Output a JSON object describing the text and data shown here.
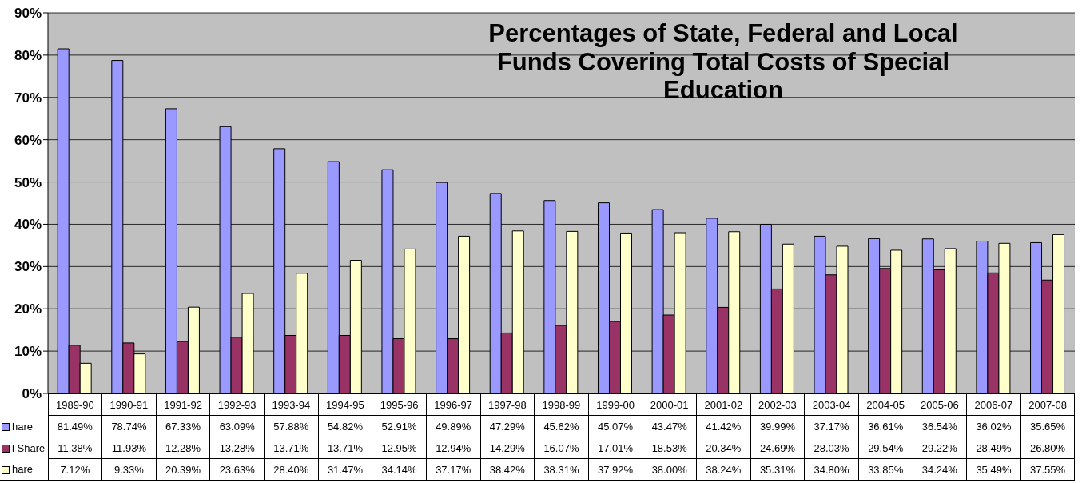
{
  "chart_data": {
    "type": "bar",
    "title": "Percentages of State, Federal and Local Funds Covering Total Costs of Special Education",
    "categories": [
      "1989-90",
      "1990-91",
      "1991-92",
      "1992-93",
      "1993-94",
      "1994-95",
      "1995-96",
      "1996-97",
      "1997-98",
      "1998-99",
      "1999-00",
      "2000-01",
      "2001-02",
      "2002-03",
      "2003-04",
      "2004-05",
      "2005-06",
      "2006-07",
      "2007-08"
    ],
    "series": [
      {
        "name": "hare",
        "color": "#9999ff",
        "values": [
          81.49,
          78.74,
          67.33,
          63.09,
          57.88,
          54.82,
          52.91,
          49.89,
          47.29,
          45.62,
          45.07,
          43.47,
          41.42,
          39.99,
          37.17,
          36.61,
          36.54,
          36.02,
          35.65
        ],
        "value_labels": [
          "81.49%",
          "78.74%",
          "67.33%",
          "63.09%",
          "57.88%",
          "54.82%",
          "52.91%",
          "49.89%",
          "47.29%",
          "45.62%",
          "45.07%",
          "43.47%",
          "41.42%",
          "39.99%",
          "37.17%",
          "36.61%",
          "36.54%",
          "36.02%",
          "35.65%"
        ]
      },
      {
        "name": "l Share",
        "color": "#993366",
        "values": [
          11.38,
          11.93,
          12.28,
          13.28,
          13.71,
          13.71,
          12.95,
          12.94,
          14.29,
          16.07,
          17.01,
          18.53,
          20.34,
          24.69,
          28.03,
          29.54,
          29.22,
          28.49,
          26.8
        ],
        "value_labels": [
          "11.38%",
          "11.93%",
          "12.28%",
          "13.28%",
          "13.71%",
          "13.71%",
          "12.95%",
          "12.94%",
          "14.29%",
          "16.07%",
          "17.01%",
          "18.53%",
          "20.34%",
          "24.69%",
          "28.03%",
          "29.54%",
          "29.22%",
          "28.49%",
          "26.80%"
        ]
      },
      {
        "name": "hare",
        "color": "#ffffcc",
        "values": [
          7.12,
          9.33,
          20.39,
          23.63,
          28.4,
          31.47,
          34.14,
          37.17,
          38.42,
          38.31,
          37.92,
          38.0,
          38.24,
          35.31,
          34.8,
          33.85,
          34.24,
          35.49,
          37.55
        ],
        "value_labels": [
          "7.12%",
          "9.33%",
          "20.39%",
          "23.63%",
          "28.40%",
          "31.47%",
          "34.14%",
          "37.17%",
          "38.42%",
          "38.31%",
          "37.92%",
          "38.00%",
          "38.24%",
          "35.31%",
          "34.80%",
          "33.85%",
          "34.24%",
          "35.49%",
          "37.55%"
        ]
      }
    ],
    "ylim": [
      0,
      90
    ],
    "yticks": [
      {
        "value": 0,
        "label": "0%"
      },
      {
        "value": 10,
        "label": "10%"
      },
      {
        "value": 20,
        "label": "20%"
      },
      {
        "value": 30,
        "label": "30%"
      },
      {
        "value": 40,
        "label": "40%"
      },
      {
        "value": 50,
        "label": "50%"
      },
      {
        "value": 60,
        "label": "60%"
      },
      {
        "value": 70,
        "label": "70%"
      },
      {
        "value": 80,
        "label": "80%"
      },
      {
        "value": 90,
        "label": "90%"
      }
    ],
    "grid": "y",
    "legend": "bottom left"
  }
}
